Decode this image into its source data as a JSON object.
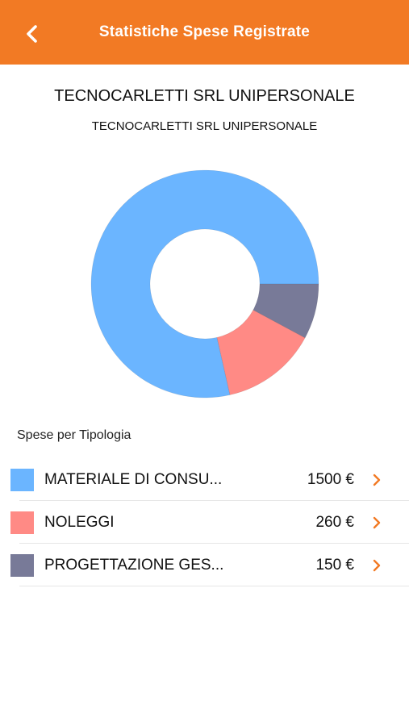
{
  "header": {
    "title": "Statistiche Spese Registrate",
    "back_icon": "chevron-left-icon",
    "background_color": "#F27A24"
  },
  "company": {
    "title": "TECNOCARLETTI SRL UNIPERSONALE",
    "subtitle": "TECNOCARLETTI SRL UNIPERSONALE"
  },
  "chart_data": {
    "type": "pie",
    "donut": true,
    "categories": [
      "MATERIALE DI CONSU...",
      "NOLEGGI",
      "PROGETTAZIONE GES..."
    ],
    "values": [
      1500,
      260,
      150
    ],
    "colors": [
      "#6BB5FF",
      "#FF8A85",
      "#787A98"
    ],
    "legend": "none"
  },
  "section": {
    "label": "Spese per Tipologia"
  },
  "items": [
    {
      "label": "MATERIALE DI CONSU...",
      "value": "1500 €",
      "color": "#6BB5FF"
    },
    {
      "label": "NOLEGGI",
      "value": "260 €",
      "color": "#FF8A85"
    },
    {
      "label": "PROGETTAZIONE GES...",
      "value": "150 €",
      "color": "#787A98"
    }
  ],
  "accent_color": "#F27A24"
}
